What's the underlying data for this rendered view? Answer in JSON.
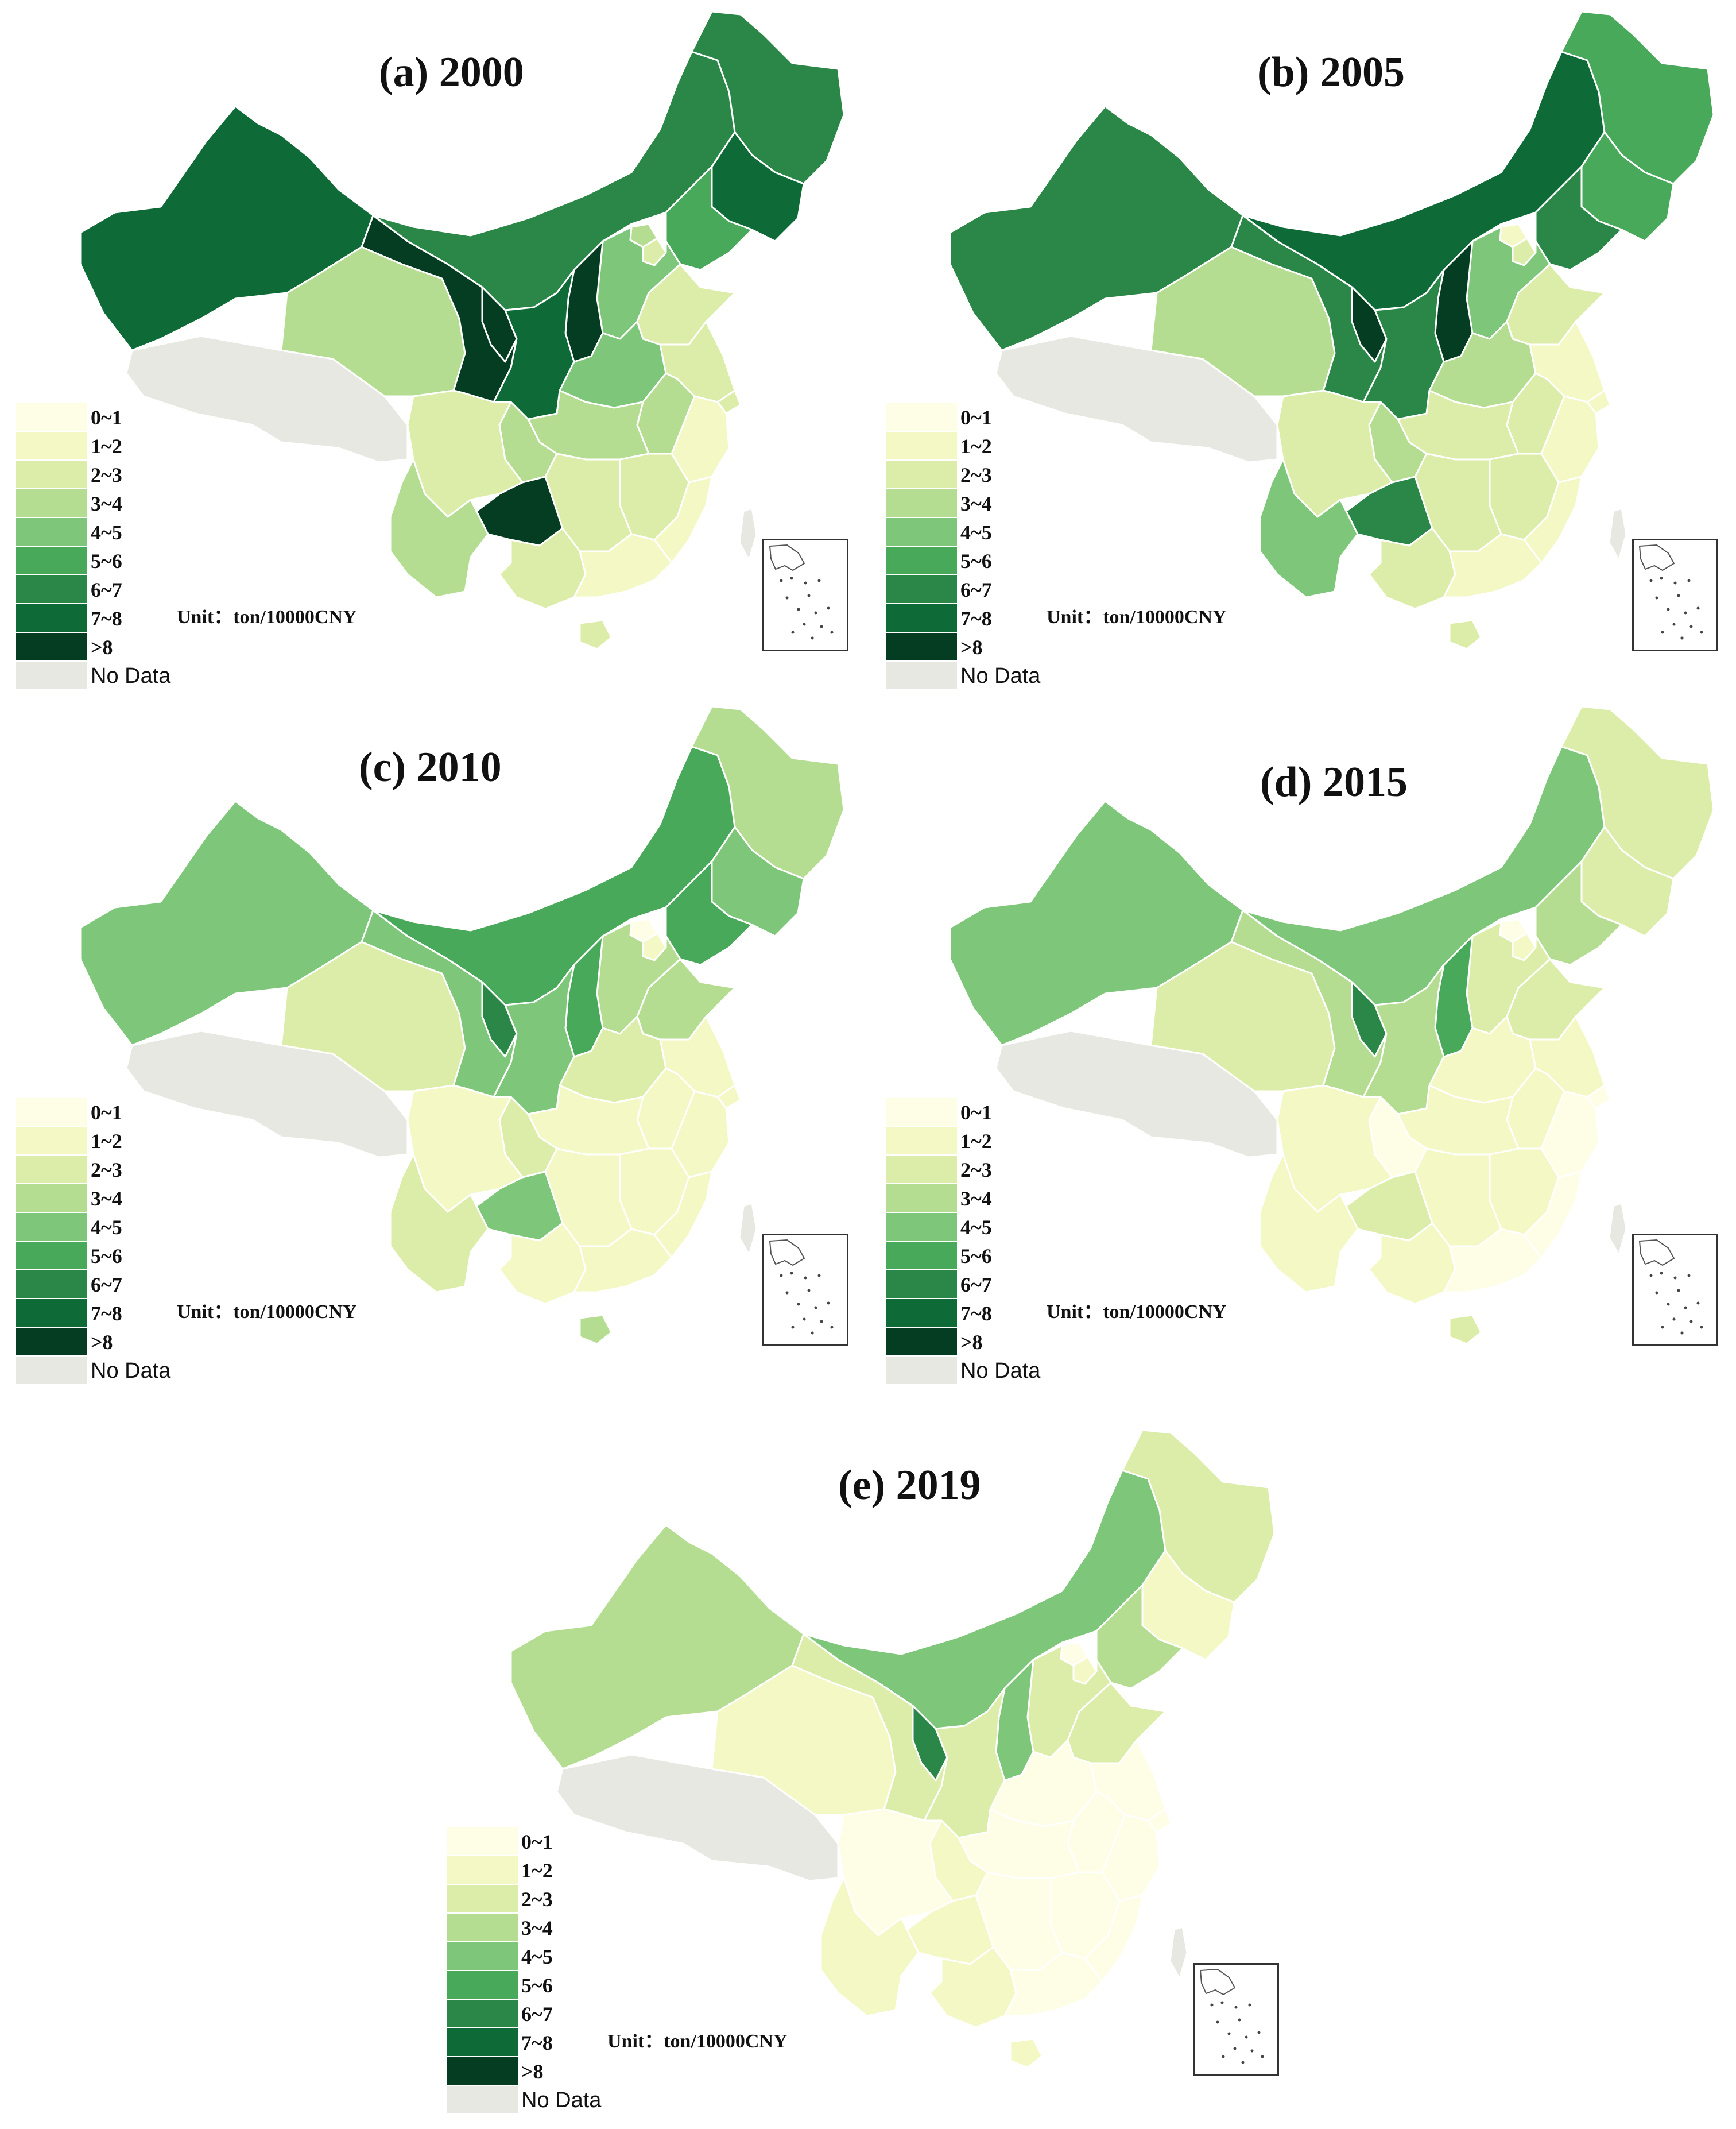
{
  "legend": {
    "classes": [
      {
        "label": "0~1",
        "color": "#fefee6"
      },
      {
        "label": "1~2",
        "color": "#f4f8c4"
      },
      {
        "label": "2~3",
        "color": "#dcedaa"
      },
      {
        "label": "3~4",
        "color": "#b5dd92"
      },
      {
        "label": "4~5",
        "color": "#7ec77a"
      },
      {
        "label": "5~6",
        "color": "#48a95a"
      },
      {
        "label": "6~7",
        "color": "#2b8747"
      },
      {
        "label": "7~8",
        "color": "#0e6a37"
      },
      {
        "label": ">8",
        "color": "#053d22"
      }
    ],
    "no_data": {
      "label": "No Data",
      "color": "#e8e8e2"
    }
  },
  "unit_text": "Unit：ton/10000CNY",
  "panels": [
    {
      "title": "(a) 2000",
      "regions": {
        "xinjiang": 7,
        "tibet": -1,
        "qinghai": 3,
        "gansu": 8,
        "ningxia": 8,
        "inner_mongolia": 6,
        "heilongjiang": 6,
        "jilin": 7,
        "liaoning": 5,
        "beijing": 3,
        "tianjin": 2,
        "hebei": 4,
        "shanxi": 8,
        "shaanxi": 7,
        "henan": 4,
        "shandong": 2,
        "sichuan": 2,
        "chongqing": 3,
        "hubei": 3,
        "anhui": 3,
        "jiangsu": 2,
        "zhejiang": 1,
        "shanghai": 2,
        "yunnan": 3,
        "guizhou": 8,
        "hunan": 2,
        "jiangxi": 2,
        "guangxi": 2,
        "guangdong": 1,
        "fujian": 1,
        "hainan": 2,
        "taiwan": -1
      }
    },
    {
      "title": "(b) 2005",
      "regions": {
        "xinjiang": 6,
        "tibet": -1,
        "qinghai": 3,
        "gansu": 6,
        "ningxia": 8,
        "inner_mongolia": 7,
        "heilongjiang": 5,
        "jilin": 5,
        "liaoning": 6,
        "beijing": 1,
        "tianjin": 2,
        "hebei": 4,
        "shanxi": 8,
        "shaanxi": 6,
        "henan": 3,
        "shandong": 2,
        "sichuan": 2,
        "chongqing": 3,
        "hubei": 2,
        "anhui": 2,
        "jiangsu": 1,
        "zhejiang": 1,
        "shanghai": 1,
        "yunnan": 4,
        "guizhou": 6,
        "hunan": 2,
        "jiangxi": 2,
        "guangxi": 2,
        "guangdong": 1,
        "fujian": 1,
        "hainan": 2,
        "taiwan": -1
      }
    },
    {
      "title": "(c) 2010",
      "regions": {
        "xinjiang": 4,
        "tibet": -1,
        "qinghai": 2,
        "gansu": 4,
        "ningxia": 6,
        "inner_mongolia": 5,
        "heilongjiang": 3,
        "jilin": 4,
        "liaoning": 5,
        "beijing": 0,
        "tianjin": 1,
        "hebei": 3,
        "shanxi": 5,
        "shaanxi": 4,
        "henan": 2,
        "shandong": 3,
        "sichuan": 1,
        "chongqing": 2,
        "hubei": 1,
        "anhui": 1,
        "jiangsu": 1,
        "zhejiang": 1,
        "shanghai": 1,
        "yunnan": 2,
        "guizhou": 4,
        "hunan": 1,
        "jiangxi": 1,
        "guangxi": 1,
        "guangdong": 1,
        "fujian": 1,
        "hainan": 3,
        "taiwan": -1
      }
    },
    {
      "title": "(d) 2015",
      "regions": {
        "xinjiang": 4,
        "tibet": -1,
        "qinghai": 2,
        "gansu": 3,
        "ningxia": 6,
        "inner_mongolia": 4,
        "heilongjiang": 2,
        "jilin": 2,
        "liaoning": 3,
        "beijing": 0,
        "tianjin": 1,
        "hebei": 2,
        "shanxi": 5,
        "shaanxi": 3,
        "henan": 1,
        "shandong": 2,
        "sichuan": 1,
        "chongqing": 0,
        "hubei": 1,
        "anhui": 1,
        "jiangsu": 1,
        "zhejiang": 0,
        "shanghai": 0,
        "yunnan": 1,
        "guizhou": 2,
        "hunan": 1,
        "jiangxi": 1,
        "guangxi": 1,
        "guangdong": 0,
        "fujian": 0,
        "hainan": 2,
        "taiwan": -1
      }
    },
    {
      "title": "(e) 2019",
      "regions": {
        "xinjiang": 3,
        "tibet": -1,
        "qinghai": 1,
        "gansu": 2,
        "ningxia": 6,
        "inner_mongolia": 4,
        "heilongjiang": 2,
        "jilin": 1,
        "liaoning": 3,
        "beijing": 0,
        "tianjin": 1,
        "hebei": 2,
        "shanxi": 4,
        "shaanxi": 2,
        "henan": 0,
        "shandong": 2,
        "sichuan": 0,
        "chongqing": 1,
        "hubei": 0,
        "anhui": 0,
        "jiangsu": 0,
        "zhejiang": 0,
        "shanghai": 0,
        "yunnan": 1,
        "guizhou": 1,
        "hunan": 0,
        "jiangxi": 0,
        "guangxi": 1,
        "guangdong": 0,
        "fujian": 0,
        "hainan": 1,
        "taiwan": -1
      }
    }
  ]
}
